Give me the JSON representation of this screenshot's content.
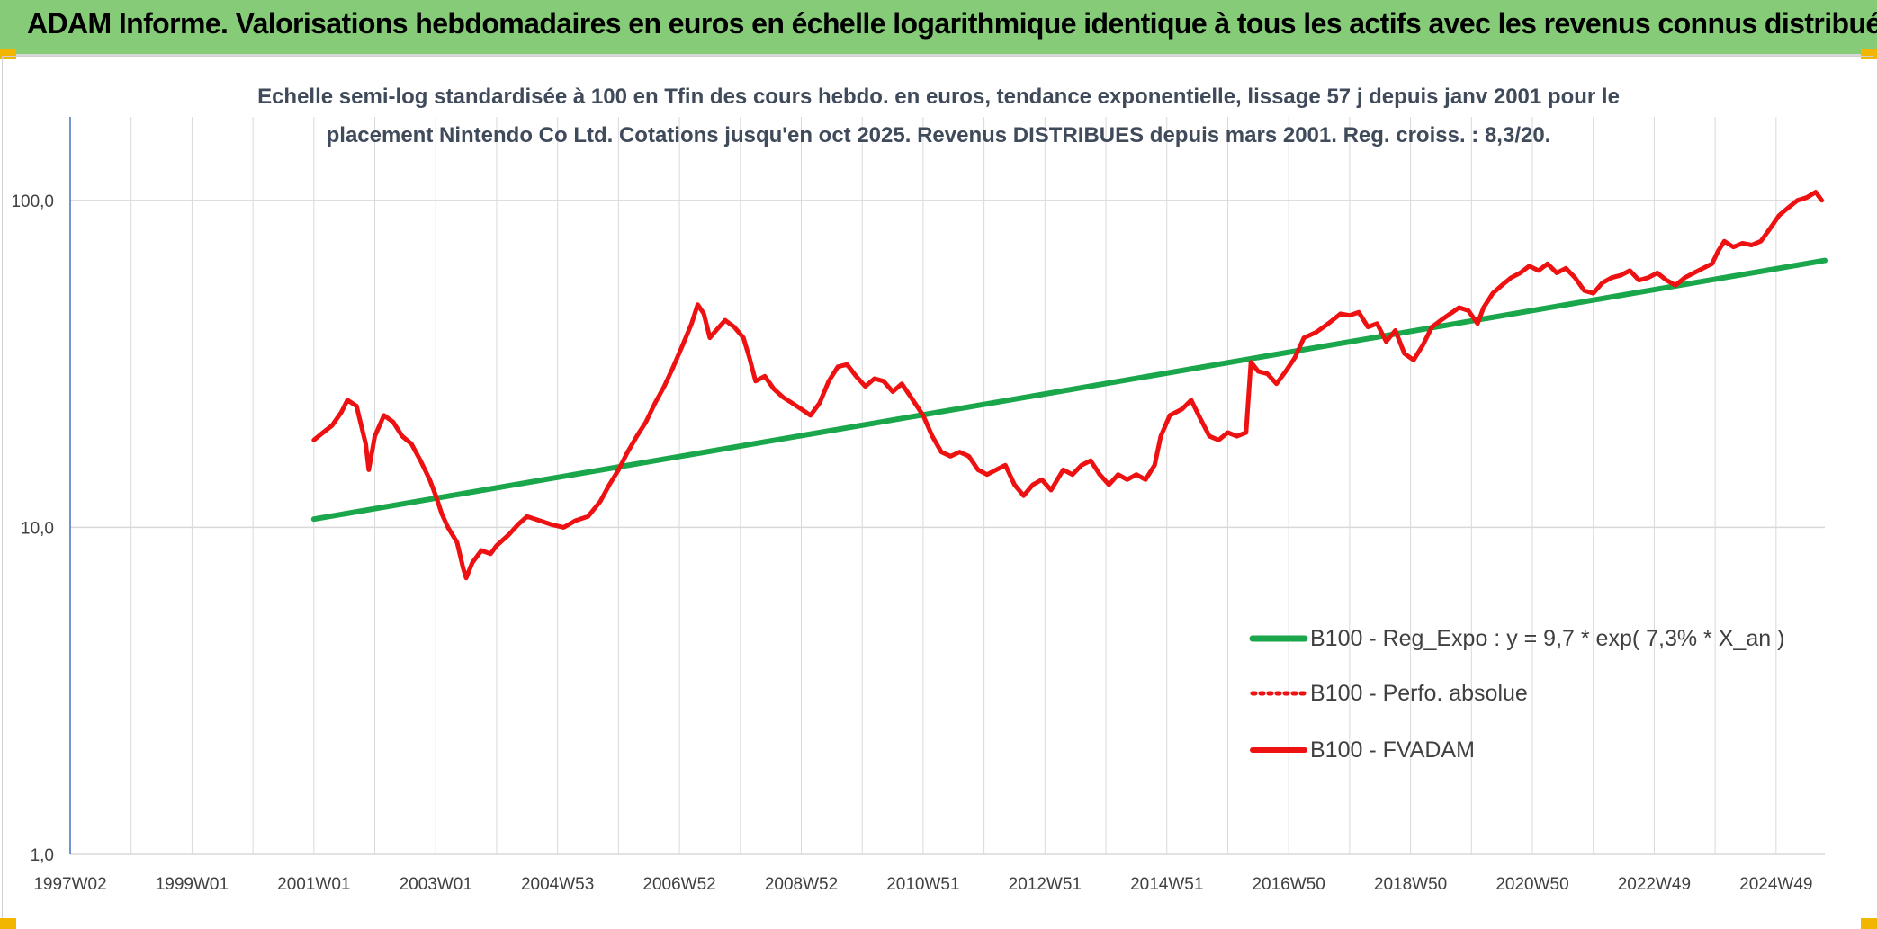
{
  "header": {
    "title": "ADAM Informe. Valorisations hebdomadaires en euros en échelle logarithmique identique à tous les actifs avec les revenus connus distribués"
  },
  "colors": {
    "banner": "#86cc78",
    "accent_corner": "#f2b600",
    "trend": "#1aa64a",
    "fvadam": "#ee1111",
    "perf": "#ee1111",
    "grid": "#d9d9d9",
    "axis": "#4472c4"
  },
  "chart_data": {
    "type": "line",
    "subtitle_lines": [
      "Echelle semi-log standardisée à 100 en Tfin des cours hebdo. en euros, tendance exponentielle, lissage 57 j depuis janv 2001 pour le",
      "placement Nintendo Co Ltd. Cotations jusqu'en oct 2025. Revenus DISTRIBUES depuis mars 2001. Reg. croiss. : 8,3/20."
    ],
    "y_scale": "log",
    "ylim": [
      1,
      180
    ],
    "y_ticks": [
      {
        "value": 1,
        "label": "1,0"
      },
      {
        "value": 10,
        "label": "10,0"
      },
      {
        "value": 100,
        "label": "100,0"
      }
    ],
    "xlim": [
      1997.0,
      2025.8
    ],
    "x_ticks": [
      {
        "value": 1997.0,
        "label": "1997W02"
      },
      {
        "value": 1999.0,
        "label": "1999W01"
      },
      {
        "value": 2001.0,
        "label": "2001W01"
      },
      {
        "value": 2003.0,
        "label": "2003W01"
      },
      {
        "value": 2005.0,
        "label": "2004W53"
      },
      {
        "value": 2007.0,
        "label": "2006W52"
      },
      {
        "value": 2009.0,
        "label": "2008W52"
      },
      {
        "value": 2011.0,
        "label": "2010W51"
      },
      {
        "value": 2013.0,
        "label": "2012W51"
      },
      {
        "value": 2015.0,
        "label": "2014W51"
      },
      {
        "value": 2017.0,
        "label": "2016W50"
      },
      {
        "value": 2019.0,
        "label": "2018W50"
      },
      {
        "value": 2021.0,
        "label": "2020W50"
      },
      {
        "value": 2023.0,
        "label": "2022W49"
      },
      {
        "value": 2025.0,
        "label": "2024W49"
      }
    ],
    "x_minor_grid_step": 1,
    "grid": true,
    "legend_position": "bottom-right",
    "series": [
      {
        "name": "B100 - Reg_Expo : y = 9,7 * exp( 7,3% *  X_an )",
        "style": "solid-thick",
        "color": "#1aa64a",
        "points": [
          [
            2001.0,
            10.6
          ],
          [
            2025.8,
            65.5
          ]
        ]
      },
      {
        "name": "B100 - Perfo. absolue",
        "style": "dotted",
        "color": "#ee1111",
        "points": []
      },
      {
        "name": "B100 - FVADAM",
        "style": "solid",
        "color": "#ee1111",
        "points": [
          [
            2001.0,
            18.5
          ],
          [
            2001.15,
            19.5
          ],
          [
            2001.3,
            20.5
          ],
          [
            2001.45,
            22.5
          ],
          [
            2001.55,
            24.5
          ],
          [
            2001.7,
            23.5
          ],
          [
            2001.85,
            18.0
          ],
          [
            2001.9,
            15.0
          ],
          [
            2002.0,
            19.0
          ],
          [
            2002.15,
            22.0
          ],
          [
            2002.3,
            21.0
          ],
          [
            2002.45,
            19.0
          ],
          [
            2002.6,
            18.0
          ],
          [
            2002.75,
            16.0
          ],
          [
            2002.9,
            14.0
          ],
          [
            2003.0,
            12.5
          ],
          [
            2003.1,
            11.0
          ],
          [
            2003.2,
            10.0
          ],
          [
            2003.35,
            9.0
          ],
          [
            2003.45,
            7.5
          ],
          [
            2003.5,
            7.0
          ],
          [
            2003.6,
            7.8
          ],
          [
            2003.75,
            8.5
          ],
          [
            2003.9,
            8.3
          ],
          [
            2004.0,
            8.8
          ],
          [
            2004.2,
            9.5
          ],
          [
            2004.35,
            10.2
          ],
          [
            2004.5,
            10.8
          ],
          [
            2004.7,
            10.5
          ],
          [
            2004.9,
            10.2
          ],
          [
            2005.1,
            10.0
          ],
          [
            2005.3,
            10.5
          ],
          [
            2005.5,
            10.8
          ],
          [
            2005.7,
            12.0
          ],
          [
            2005.85,
            13.5
          ],
          [
            2006.0,
            15.0
          ],
          [
            2006.15,
            17.0
          ],
          [
            2006.3,
            19.0
          ],
          [
            2006.45,
            21.0
          ],
          [
            2006.6,
            24.0
          ],
          [
            2006.75,
            27.0
          ],
          [
            2006.9,
            31.0
          ],
          [
            2007.05,
            36.0
          ],
          [
            2007.2,
            42.0
          ],
          [
            2007.3,
            48.0
          ],
          [
            2007.4,
            45.0
          ],
          [
            2007.5,
            38.0
          ],
          [
            2007.6,
            40.0
          ],
          [
            2007.75,
            43.0
          ],
          [
            2007.9,
            41.0
          ],
          [
            2008.05,
            38.0
          ],
          [
            2008.15,
            33.0
          ],
          [
            2008.25,
            28.0
          ],
          [
            2008.4,
            29.0
          ],
          [
            2008.55,
            26.5
          ],
          [
            2008.7,
            25.0
          ],
          [
            2008.85,
            24.0
          ],
          [
            2009.0,
            23.0
          ],
          [
            2009.15,
            22.0
          ],
          [
            2009.3,
            24.0
          ],
          [
            2009.45,
            28.0
          ],
          [
            2009.6,
            31.0
          ],
          [
            2009.75,
            31.5
          ],
          [
            2009.9,
            29.0
          ],
          [
            2010.05,
            27.0
          ],
          [
            2010.2,
            28.5
          ],
          [
            2010.35,
            28.0
          ],
          [
            2010.5,
            26.0
          ],
          [
            2010.65,
            27.5
          ],
          [
            2010.8,
            25.0
          ],
          [
            2011.0,
            22.0
          ],
          [
            2011.15,
            19.0
          ],
          [
            2011.3,
            17.0
          ],
          [
            2011.45,
            16.5
          ],
          [
            2011.6,
            17.0
          ],
          [
            2011.75,
            16.5
          ],
          [
            2011.9,
            15.0
          ],
          [
            2012.05,
            14.5
          ],
          [
            2012.2,
            15.0
          ],
          [
            2012.35,
            15.5
          ],
          [
            2012.5,
            13.5
          ],
          [
            2012.65,
            12.5
          ],
          [
            2012.8,
            13.5
          ],
          [
            2012.95,
            14.0
          ],
          [
            2013.1,
            13.0
          ],
          [
            2013.3,
            15.0
          ],
          [
            2013.45,
            14.5
          ],
          [
            2013.6,
            15.5
          ],
          [
            2013.75,
            16.0
          ],
          [
            2013.9,
            14.5
          ],
          [
            2014.05,
            13.5
          ],
          [
            2014.2,
            14.5
          ],
          [
            2014.35,
            14.0
          ],
          [
            2014.5,
            14.5
          ],
          [
            2014.65,
            14.0
          ],
          [
            2014.8,
            15.5
          ],
          [
            2014.9,
            19.0
          ],
          [
            2015.05,
            22.0
          ],
          [
            2015.25,
            23.0
          ],
          [
            2015.4,
            24.5
          ],
          [
            2015.55,
            21.5
          ],
          [
            2015.7,
            19.0
          ],
          [
            2015.85,
            18.5
          ],
          [
            2016.0,
            19.5
          ],
          [
            2016.15,
            19.0
          ],
          [
            2016.3,
            19.5
          ],
          [
            2016.38,
            32.0
          ],
          [
            2016.5,
            30.0
          ],
          [
            2016.65,
            29.5
          ],
          [
            2016.8,
            27.5
          ],
          [
            2016.95,
            30.0
          ],
          [
            2017.1,
            33.0
          ],
          [
            2017.25,
            38.0
          ],
          [
            2017.45,
            39.5
          ],
          [
            2017.65,
            42.0
          ],
          [
            2017.85,
            45.0
          ],
          [
            2018.0,
            44.5
          ],
          [
            2018.15,
            45.5
          ],
          [
            2018.3,
            41.0
          ],
          [
            2018.45,
            42.0
          ],
          [
            2018.6,
            37.0
          ],
          [
            2018.75,
            40.0
          ],
          [
            2018.9,
            34.0
          ],
          [
            2019.05,
            32.5
          ],
          [
            2019.2,
            36.0
          ],
          [
            2019.35,
            41.0
          ],
          [
            2019.5,
            43.0
          ],
          [
            2019.65,
            45.0
          ],
          [
            2019.8,
            47.0
          ],
          [
            2019.95,
            46.0
          ],
          [
            2020.1,
            42.0
          ],
          [
            2020.2,
            47.0
          ],
          [
            2020.35,
            52.0
          ],
          [
            2020.5,
            55.0
          ],
          [
            2020.65,
            58.0
          ],
          [
            2020.8,
            60.0
          ],
          [
            2020.95,
            63.0
          ],
          [
            2021.1,
            61.0
          ],
          [
            2021.25,
            64.0
          ],
          [
            2021.4,
            60.0
          ],
          [
            2021.55,
            62.0
          ],
          [
            2021.7,
            58.0
          ],
          [
            2021.85,
            53.0
          ],
          [
            2022.0,
            52.0
          ],
          [
            2022.15,
            56.0
          ],
          [
            2022.3,
            58.0
          ],
          [
            2022.45,
            59.0
          ],
          [
            2022.6,
            61.0
          ],
          [
            2022.75,
            57.0
          ],
          [
            2022.9,
            58.0
          ],
          [
            2023.05,
            60.0
          ],
          [
            2023.2,
            57.0
          ],
          [
            2023.35,
            55.0
          ],
          [
            2023.5,
            58.0
          ],
          [
            2023.65,
            60.0
          ],
          [
            2023.8,
            62.0
          ],
          [
            2023.95,
            64.0
          ],
          [
            2024.05,
            70.0
          ],
          [
            2024.15,
            75.0
          ],
          [
            2024.3,
            72.0
          ],
          [
            2024.45,
            74.0
          ],
          [
            2024.6,
            73.0
          ],
          [
            2024.75,
            75.0
          ],
          [
            2024.9,
            82.0
          ],
          [
            2025.05,
            90.0
          ],
          [
            2025.2,
            95.0
          ],
          [
            2025.35,
            100.0
          ],
          [
            2025.5,
            102.0
          ],
          [
            2025.65,
            106.0
          ],
          [
            2025.75,
            100.0
          ]
        ]
      }
    ]
  }
}
